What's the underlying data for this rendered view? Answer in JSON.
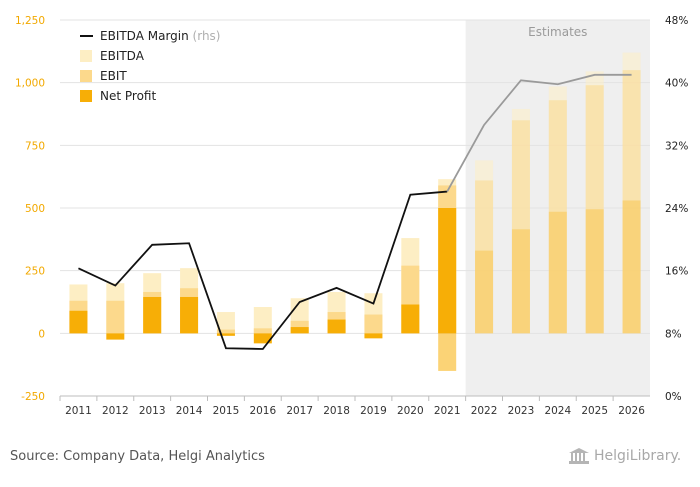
{
  "chart_data": {
    "type": "bar",
    "title": "",
    "xlabel": "",
    "ylabel": "",
    "categories": [
      "2011",
      "2012",
      "2013",
      "2014",
      "2015",
      "2016",
      "2017",
      "2018",
      "2019",
      "2020",
      "2021",
      "2022",
      "2023",
      "2024",
      "2025",
      "2026"
    ],
    "estimates_from": "2022",
    "estimates_label": "Estimates",
    "ylim": [
      -250,
      1250
    ],
    "y_ticks": [
      "-250",
      "0",
      "250",
      "500",
      "750",
      "1,000",
      "1,250"
    ],
    "y2lim": [
      0,
      48
    ],
    "y2_ticks": [
      "0%",
      "8%",
      "16%",
      "24%",
      "32%",
      "40%",
      "48%"
    ],
    "series": [
      {
        "name": "EBITDA",
        "kind": "bar",
        "color": "#fdeec4",
        "values": [
          195,
          200,
          240,
          260,
          85,
          105,
          140,
          165,
          160,
          380,
          615,
          690,
          895,
          985,
          1045,
          1120
        ]
      },
      {
        "name": "EBIT",
        "kind": "bar",
        "color": "#fcd98c",
        "values": [
          130,
          130,
          165,
          180,
          15,
          20,
          50,
          85,
          75,
          270,
          590,
          610,
          850,
          930,
          990,
          1050
        ]
      },
      {
        "name": "Net Profit",
        "kind": "bar",
        "color": "#f7ae06",
        "values": [
          90,
          -25,
          145,
          145,
          -10,
          -40,
          25,
          55,
          -20,
          115,
          500,
          330,
          415,
          485,
          495,
          530
        ],
        "negative_values": [
          0,
          -25,
          0,
          0,
          -10,
          -40,
          0,
          0,
          -20,
          0,
          -150,
          0,
          0,
          0,
          0,
          0
        ]
      },
      {
        "name": "EBITDA Margin",
        "name_suffix": "(rhs)",
        "kind": "line",
        "axis": "right",
        "color": "#111111",
        "estimate_color": "#9a9a9a",
        "values": [
          16.3,
          14.1,
          19.3,
          19.5,
          6.1,
          6.0,
          12.0,
          13.8,
          11.8,
          25.7,
          26.1,
          34.6,
          40.3,
          39.8,
          41.0,
          41.0
        ]
      }
    ],
    "legend_position": "top-left",
    "grid": true
  },
  "footer": {
    "source": "Source: Company Data, Helgi Analytics",
    "logo_text": "HelgiLibrary."
  }
}
